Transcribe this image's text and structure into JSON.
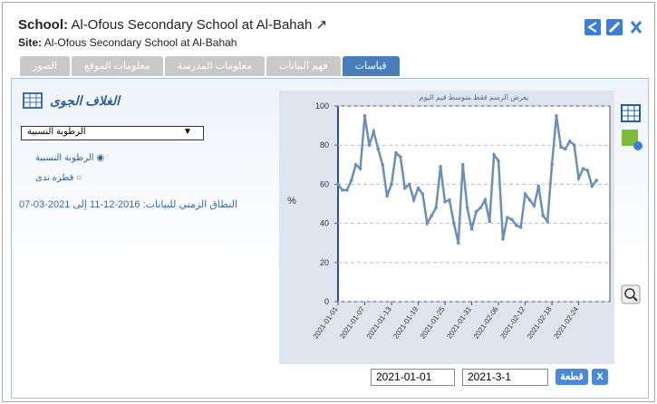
{
  "header": {
    "school_label": "School:",
    "school": "Al-Ofous Secondary School at Al-Bahah",
    "site_label": "Site:",
    "site": "Al-Ofous Secondary School at Al-Bahah"
  },
  "tabs": [
    "قياسات",
    "فهم البيانات",
    "معلومات المدرسة",
    "معلومات الموقع",
    "الصور"
  ],
  "panel": {
    "title": "الغلاف الجوى",
    "select": "الرطوبة النسبية",
    "options": [
      "الرطوبة النسبية",
      "قطره ندى"
    ],
    "range": "النطاق الزمني للبيانات: 2016-12-11 إلى 2021-03-07"
  },
  "chart": {
    "type": "line",
    "title": "يعرض الرسم فقط متوسط قيم اليوم",
    "y_label": "%",
    "color": "#6b8fb5",
    "x": [
      "2021-01-01",
      "2021-01-02",
      "2021-01-03",
      "2021-01-04",
      "2021-01-05",
      "2021-01-06",
      "2021-01-07",
      "2021-01-08",
      "2021-01-09",
      "2021-01-10",
      "2021-01-11",
      "2021-01-12",
      "2021-01-13",
      "2021-01-14",
      "2021-01-15",
      "2021-01-16",
      "2021-01-17",
      "2021-01-18",
      "2021-01-19",
      "2021-01-20",
      "2021-01-21",
      "2021-01-22",
      "2021-01-23",
      "2021-01-24",
      "2021-01-25",
      "2021-01-26",
      "2021-01-27",
      "2021-01-28",
      "2021-01-29",
      "2021-01-30",
      "2021-01-31",
      "2021-02-01",
      "2021-02-02",
      "2021-02-03",
      "2021-02-04",
      "2021-02-05",
      "2021-02-06",
      "2021-02-07",
      "2021-02-08",
      "2021-02-09",
      "2021-02-10",
      "2021-02-11",
      "2021-02-12",
      "2021-02-13",
      "2021-02-14",
      "2021-02-15",
      "2021-02-16",
      "2021-02-17",
      "2021-02-18",
      "2021-02-19",
      "2021-02-20",
      "2021-02-21",
      "2021-02-22",
      "2021-02-23",
      "2021-02-24",
      "2021-02-25",
      "2021-02-26",
      "2021-02-27",
      "2021-02-28"
    ],
    "values": [
      60,
      57,
      57,
      62,
      70,
      68,
      95,
      80,
      87,
      78,
      70,
      54,
      60,
      76,
      74,
      58,
      60,
      52,
      58,
      55,
      40,
      44,
      48,
      69,
      51,
      52,
      40,
      30,
      70,
      48,
      37,
      46,
      48,
      52,
      41,
      75,
      72,
      32,
      43,
      42,
      39,
      38,
      55,
      52,
      49,
      59,
      44,
      41,
      70,
      95,
      79,
      78,
      82,
      80,
      63,
      68,
      67,
      59,
      62
    ],
    "ylim": [
      0,
      100
    ],
    "yticks": [
      0,
      20,
      40,
      60,
      80,
      100
    ],
    "xticks": [
      "2021-01-01",
      "2021-01-07",
      "2021-01-13",
      "2021-01-19",
      "2021-01-25",
      "2021-01-31",
      "2021-02-06",
      "2021-02-12",
      "2021-02-18",
      "2021-02-24"
    ],
    "grid": true
  },
  "controls": {
    "start": "2021-01-01",
    "end": "2021-3-1",
    "plot_button": "قطعة",
    "close_button": "X"
  }
}
